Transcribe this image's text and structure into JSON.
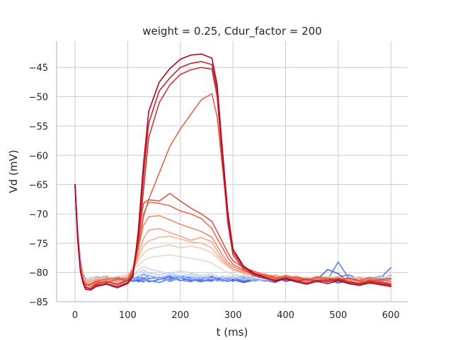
{
  "chart_data": {
    "type": "line",
    "title": "weight = 0.25, Cdur_factor = 200",
    "xlabel": "t (ms)",
    "ylabel": "Vd (mV)",
    "xlim": [
      -35,
      632
    ],
    "ylim": [
      -85,
      -40.5
    ],
    "xticks": [
      0,
      100,
      200,
      300,
      400,
      500,
      600
    ],
    "yticks": [
      -85,
      -80,
      -75,
      -70,
      -65,
      -60,
      -55,
      -50,
      -45
    ],
    "grid": true,
    "colormap": "coolwarm",
    "x": [
      0,
      5,
      10,
      15,
      20,
      30,
      40,
      60,
      80,
      100,
      110,
      120,
      130,
      140,
      160,
      180,
      200,
      220,
      240,
      260,
      270,
      280,
      290,
      300,
      320,
      340,
      360,
      380,
      400,
      420,
      440,
      460,
      480,
      500,
      520,
      540,
      560,
      580,
      600
    ],
    "series": [
      {
        "color": "#3b4cc0",
        "values": [
          -65,
          -73,
          -78,
          -80.5,
          -81.2,
          -81,
          -81.3,
          -80.8,
          -81.4,
          -81.1,
          -81,
          -81.3,
          -81.6,
          -81,
          -80.8,
          -81.5,
          -80.9,
          -81.4,
          -81.2,
          -80.7,
          -81.1,
          -81.3,
          -81.5,
          -81.2,
          -81.7,
          -81.3,
          -81.0,
          -80.8,
          -81.5,
          -81.2,
          -80.9,
          -81.4,
          -81.1,
          -81.8,
          -81.3,
          -80.9,
          -81.2,
          -81.5,
          -81.0
        ]
      },
      {
        "color": "#4a63d3",
        "values": [
          -65,
          -73.5,
          -78.5,
          -80.3,
          -81.5,
          -81.2,
          -80.9,
          -81.1,
          -80.7,
          -81.3,
          -81.5,
          -81.4,
          -80.9,
          -81.6,
          -81.2,
          -80.8,
          -81.4,
          -81.0,
          -81.5,
          -81.3,
          -80.9,
          -81.2,
          -81.0,
          -81.4,
          -81.1,
          -80.6,
          -81.3,
          -81.7,
          -81.0,
          -81.5,
          -80.8,
          -81.2,
          -79.5,
          -80.2,
          -81.6,
          -81.0,
          -81.3,
          -81.1,
          -80.5
        ]
      },
      {
        "color": "#5977e3",
        "values": [
          -65,
          -74,
          -79,
          -81,
          -81.7,
          -81.4,
          -81.0,
          -80.6,
          -81.3,
          -81.0,
          -80.8,
          -81.6,
          -81.2,
          -80.5,
          -81.0,
          -81.3,
          -80.7,
          -81.2,
          -81.6,
          -81.0,
          -81.4,
          -80.8,
          -81.3,
          -80.9,
          -81.5,
          -81.2,
          -80.9,
          -81.3,
          -80.7,
          -81.1,
          -81.5,
          -81.0,
          -81.4,
          -80.8,
          -80.4,
          -81.2,
          -81.6,
          -81.0,
          -79.2
        ]
      },
      {
        "color": "#6282ea",
        "values": [
          -65,
          -72.5,
          -77.8,
          -80.2,
          -81.0,
          -81.5,
          -81.1,
          -80.9,
          -81.5,
          -81.2,
          -81.3,
          -80.8,
          -81.0,
          -81.4,
          -81.7,
          -81.1,
          -80.6,
          -81.0,
          -81.3,
          -81.5,
          -81.0,
          -80.7,
          -81.2,
          -81.5,
          -81.0,
          -81.4,
          -81.1,
          -80.6,
          -81.2,
          -80.9,
          -81.3,
          -80.8,
          -81.2,
          -78.2,
          -81.0,
          -81.4,
          -80.9,
          -81.5,
          -81.1
        ]
      },
      {
        "color": "#7396f5",
        "values": [
          -65,
          -74.5,
          -79.2,
          -80.9,
          -81.4,
          -81.0,
          -80.7,
          -81.4,
          -81.1,
          -80.8,
          -81.4,
          -81.0,
          -81.5,
          -81.1,
          -80.9,
          -80.6,
          -81.3,
          -81.6,
          -81.0,
          -80.8,
          -81.3,
          -81.5,
          -81.1,
          -80.6,
          -81.3,
          -81.0,
          -81.5,
          -81.2,
          -80.9,
          -81.6,
          -81.2,
          -80.7,
          -81.0,
          -81.3,
          -81.6,
          -80.8,
          -81.3,
          -81.0,
          -81.4
        ]
      },
      {
        "color": "#8db0fe",
        "values": [
          -65,
          -73,
          -78.2,
          -80.6,
          -81.3,
          -80.9,
          -81.4,
          -81.2,
          -80.8,
          -81.0,
          -81.2,
          -81.1,
          -80.4,
          -80.9,
          -81.1,
          -81.4,
          -80.9,
          -80.7,
          -81.1,
          -81.0,
          -81.5,
          -81.2,
          -80.8,
          -81.0,
          -80.7,
          -81.5,
          -81.1,
          -81.4,
          -80.6,
          -81.0,
          -81.4,
          -81.1,
          -80.7,
          -81.2,
          -80.9,
          -81.3,
          -81.0,
          -80.6,
          -81.2
        ]
      },
      {
        "color": "#9ebeff",
        "values": [
          -65,
          -74,
          -78.8,
          -80.8,
          -81.6,
          -81.3,
          -80.8,
          -81.5,
          -81.0,
          -81.4,
          -81.0,
          -80.6,
          -80.2,
          -80.5,
          -80.9,
          -80.4,
          -80.8,
          -81.2,
          -80.7,
          -81.1,
          -80.6,
          -81.0,
          -81.4,
          -81.0,
          -80.8,
          -81.2,
          -80.8,
          -81.0,
          -81.3,
          -80.7,
          -81.0,
          -81.5,
          -81.1,
          -80.8,
          -81.2,
          -81.5,
          -80.9,
          -81.2,
          -81.4
        ]
      },
      {
        "color": "#b5cdfa",
        "values": [
          -65,
          -73.2,
          -78.5,
          -80.4,
          -81.1,
          -81.6,
          -81.2,
          -80.7,
          -81.2,
          -80.9,
          -80.5,
          -80.0,
          -79.6,
          -80.1,
          -80.4,
          -80.0,
          -80.6,
          -80.3,
          -80.8,
          -80.5,
          -80.9,
          -80.6,
          -81.0,
          -80.7,
          -81.2,
          -80.9,
          -81.3,
          -80.6,
          -81.0,
          -81.3,
          -80.8,
          -81.1,
          -81.4,
          -80.9,
          -81.2,
          -80.7,
          -81.2,
          -80.8,
          -81.0
        ]
      },
      {
        "color": "#d1dae9",
        "values": [
          -65,
          -74.2,
          -79.0,
          -80.7,
          -81.5,
          -81.1,
          -80.6,
          -81.0,
          -81.4,
          -81.0,
          -80.7,
          -79.5,
          -79.0,
          -79.4,
          -79.8,
          -80.2,
          -79.7,
          -80.1,
          -80.5,
          -80.2,
          -80.6,
          -80.9,
          -80.5,
          -80.8,
          -80.4,
          -80.9,
          -81.2,
          -80.8,
          -81.1,
          -80.6,
          -81.4,
          -81.0,
          -80.8,
          -81.3,
          -80.9,
          -81.2,
          -81.5,
          -81.0,
          -81.3
        ]
      },
      {
        "color": "#e4d9d2",
        "values": [
          -65,
          -73.8,
          -78.6,
          -80.5,
          -81.3,
          -80.8,
          -81.2,
          -81.0,
          -80.7,
          -80.3,
          -79.6,
          -78.8,
          -78.0,
          -77.5,
          -77.2,
          -77.0,
          -77.3,
          -77.6,
          -77.9,
          -78.4,
          -79.0,
          -79.5,
          -80.0,
          -80.3,
          -80.6,
          -80.9,
          -80.6,
          -81.0,
          -80.7,
          -81.1,
          -81.4,
          -80.9,
          -81.2,
          -80.8,
          -81.1,
          -80.7,
          -81.3,
          -81.0,
          -80.6
        ]
      },
      {
        "color": "#f2cbb7",
        "values": [
          -65,
          -73.4,
          -78.8,
          -80.9,
          -81.7,
          -81.4,
          -80.9,
          -81.3,
          -81.0,
          -80.5,
          -79.5,
          -78.0,
          -76.8,
          -76.0,
          -75.6,
          -75.3,
          -75.8,
          -75.5,
          -75.9,
          -76.6,
          -77.5,
          -78.3,
          -79.0,
          -79.6,
          -80.2,
          -80.6,
          -80.9,
          -80.5,
          -80.8,
          -81.2,
          -80.9,
          -81.3,
          -80.7,
          -81.0,
          -81.4,
          -81.0,
          -80.8,
          -81.2,
          -81.5
        ]
      },
      {
        "color": "#f7b89c",
        "values": [
          -65,
          -74,
          -79.2,
          -80.9,
          -81.5,
          -81.8,
          -81.2,
          -80.6,
          -81.2,
          -80.8,
          -79.6,
          -77.5,
          -75.5,
          -74.6,
          -74.0,
          -73.8,
          -74.3,
          -74.8,
          -75.0,
          -75.8,
          -77.0,
          -78.0,
          -78.8,
          -79.5,
          -80.1,
          -80.5,
          -80.2,
          -80.7,
          -81.0,
          -80.6,
          -81.1,
          -80.8,
          -81.3,
          -80.9,
          -81.2,
          -81.6,
          -81.0,
          -81.3,
          -80.9
        ]
      },
      {
        "color": "#f6a385",
        "values": [
          -65,
          -73.2,
          -78.4,
          -80.4,
          -81.2,
          -81.6,
          -81.1,
          -81.3,
          -81.6,
          -81.0,
          -79.8,
          -77.0,
          -74.2,
          -72.8,
          -72.5,
          -73.2,
          -73.8,
          -74.5,
          -74.0,
          -74.8,
          -76.3,
          -77.6,
          -78.6,
          -79.4,
          -80.0,
          -80.4,
          -80.8,
          -80.4,
          -81.0,
          -80.7,
          -81.1,
          -81.4,
          -81.0,
          -80.7,
          -81.2,
          -80.9,
          -81.3,
          -81.0,
          -81.6
        ]
      },
      {
        "color": "#f08a6c",
        "values": [
          -65,
          -74.2,
          -79.3,
          -81.2,
          -81.8,
          -82.0,
          -81.4,
          -81.0,
          -81.4,
          -80.8,
          -79.2,
          -76.0,
          -72.0,
          -70.5,
          -70.3,
          -71.0,
          -71.8,
          -72.4,
          -73.0,
          -74.0,
          -75.5,
          -77.0,
          -78.2,
          -79.0,
          -79.8,
          -80.3,
          -80.7,
          -81.1,
          -80.6,
          -81.0,
          -81.4,
          -80.9,
          -81.2,
          -81.5,
          -81.0,
          -81.3,
          -80.8,
          -81.4,
          -81.2
        ]
      },
      {
        "color": "#e36c55",
        "values": [
          -65,
          -73.5,
          -78.8,
          -81.0,
          -81.9,
          -82.1,
          -81.6,
          -81.2,
          -80.9,
          -81.2,
          -79.8,
          -75.0,
          -70.0,
          -68.0,
          -68.2,
          -68.6,
          -69.5,
          -70.0,
          -70.8,
          -72.5,
          -74.2,
          -75.8,
          -77.4,
          -78.6,
          -79.6,
          -80.2,
          -80.6,
          -81.0,
          -80.5,
          -80.9,
          -81.3,
          -80.7,
          -81.0,
          -81.4,
          -81.1,
          -81.5,
          -80.9,
          -81.2,
          -81.6
        ]
      },
      {
        "color": "#d95847",
        "values": [
          -65,
          -74,
          -79.5,
          -81.4,
          -82.3,
          -82.0,
          -81.5,
          -81.8,
          -81.1,
          -81.4,
          -79.5,
          -74.0,
          -68.2,
          -67.6,
          -67.8,
          -66.5,
          -67.8,
          -69.0,
          -70.0,
          -71.3,
          -73.0,
          -74.8,
          -76.6,
          -78.0,
          -79.2,
          -79.8,
          -80.4,
          -80.8,
          -81.3,
          -80.8,
          -81.2,
          -81.5,
          -81.0,
          -81.3,
          -80.9,
          -81.4,
          -81.7,
          -81.2,
          -81.0
        ]
      },
      {
        "color": "#e0654f",
        "values": [
          -65,
          -73.8,
          -79.1,
          -81.3,
          -82.1,
          -82.4,
          -81.8,
          -81.5,
          -81.9,
          -81.3,
          -80.0,
          -76.0,
          -70.5,
          -67.5,
          -63.0,
          -58.5,
          -55.5,
          -53.0,
          -50.5,
          -49.5,
          -53.5,
          -62.0,
          -70.5,
          -76.5,
          -79.0,
          -80.1,
          -80.6,
          -81.0,
          -80.7,
          -81.2,
          -81.5,
          -81.0,
          -81.4,
          -81.1,
          -81.5,
          -81.8,
          -81.2,
          -81.5,
          -81.9
        ]
      },
      {
        "color": "#c83a37",
        "values": [
          -65,
          -74.5,
          -79.6,
          -81.6,
          -82.5,
          -82.7,
          -82.0,
          -81.6,
          -82.1,
          -81.4,
          -80.2,
          -75.0,
          -66.0,
          -57.0,
          -51.0,
          -48.0,
          -46.2,
          -45.4,
          -45.0,
          -45.3,
          -50.0,
          -61.0,
          -71.5,
          -77.0,
          -79.4,
          -80.5,
          -81.0,
          -81.4,
          -81.0,
          -81.5,
          -81.1,
          -81.6,
          -81.3,
          -81.0,
          -81.6,
          -81.9,
          -81.4,
          -81.7,
          -82.0
        ]
      },
      {
        "color": "#c0282f",
        "values": [
          -65,
          -74.2,
          -79.4,
          -81.5,
          -82.6,
          -82.8,
          -82.2,
          -81.9,
          -82.4,
          -81.7,
          -80.5,
          -74.0,
          -63.5,
          -54.5,
          -49.0,
          -46.8,
          -45.0,
          -44.3,
          -44.0,
          -44.5,
          -49.0,
          -60.0,
          -70.5,
          -76.5,
          -79.1,
          -80.3,
          -80.9,
          -81.3,
          -80.9,
          -81.4,
          -81.8,
          -81.3,
          -81.6,
          -81.2,
          -81.7,
          -82.0,
          -81.6,
          -81.9,
          -82.2
        ]
      },
      {
        "color": "#b40426",
        "values": [
          -65,
          -74.0,
          -79.8,
          -81.8,
          -82.9,
          -83.0,
          -82.4,
          -82.0,
          -82.6,
          -81.9,
          -80.7,
          -73.0,
          -61.5,
          -52.5,
          -47.5,
          -45.2,
          -43.6,
          -42.9,
          -42.7,
          -43.4,
          -48.0,
          -59.0,
          -69.5,
          -76.0,
          -78.9,
          -80.1,
          -80.8,
          -81.5,
          -81.1,
          -81.6,
          -82.0,
          -81.5,
          -81.9,
          -81.4,
          -81.9,
          -82.2,
          -81.8,
          -82.1,
          -82.4
        ]
      }
    ]
  }
}
